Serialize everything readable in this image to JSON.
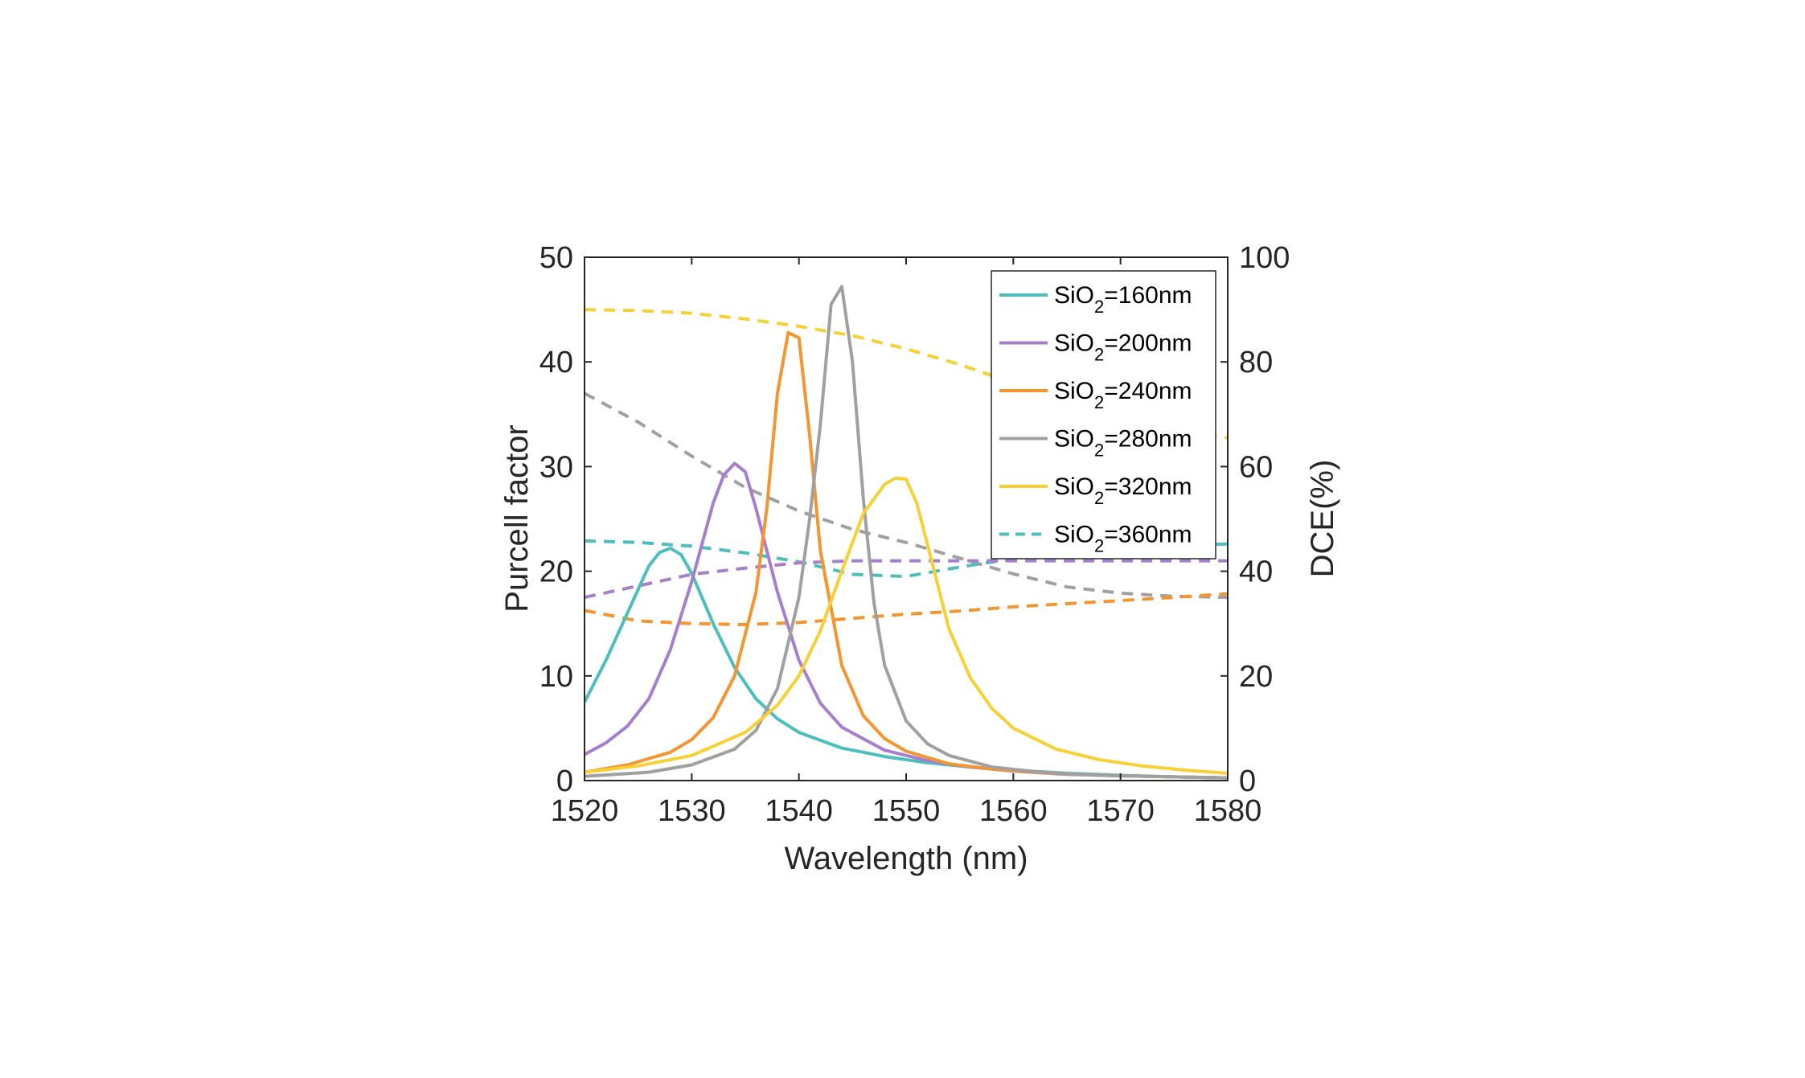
{
  "chart_data": {
    "type": "line",
    "xlabel": "Wavelength (nm)",
    "ylabel_left": "Purcell factor",
    "ylabel_right": "DCE(%)",
    "xlim": [
      1520,
      1580
    ],
    "ylim_left": [
      0,
      50
    ],
    "ylim_right": [
      0,
      100
    ],
    "x_ticks": [
      "1520",
      "1530",
      "1540",
      "1550",
      "1560",
      "1570",
      "1580"
    ],
    "y_left_ticks": [
      "0",
      "10",
      "20",
      "30",
      "40",
      "50"
    ],
    "y_right_ticks": [
      "0",
      "20",
      "40",
      "60",
      "80",
      "100"
    ],
    "grid": false,
    "legend_position": "top-right",
    "legend": [
      {
        "prefix": "SiO",
        "sub": "2",
        "suffix": "=160nm",
        "color": "#4DBEBE",
        "dash": false
      },
      {
        "prefix": "SiO",
        "sub": "2",
        "suffix": "=200nm",
        "color": "#A57FCC",
        "dash": false
      },
      {
        "prefix": "SiO",
        "sub": "2",
        "suffix": "=240nm",
        "color": "#F39530",
        "dash": false
      },
      {
        "prefix": "SiO",
        "sub": "2",
        "suffix": "=280nm",
        "color": "#A0A0A0",
        "dash": false
      },
      {
        "prefix": "SiO",
        "sub": "2",
        "suffix": "=320nm",
        "color": "#F7D035",
        "dash": false
      },
      {
        "prefix": "SiO",
        "sub": "2",
        "suffix": "=360nm",
        "color": "#4DBEBE",
        "dash": true
      }
    ],
    "purcell_series": [
      {
        "color": "#4DBEBE",
        "axis": "left",
        "x": [
          1520,
          1522,
          1524,
          1526,
          1527,
          1528,
          1529,
          1530,
          1532,
          1534,
          1536,
          1538,
          1540,
          1544,
          1548,
          1552,
          1556,
          1560,
          1565,
          1570,
          1575,
          1580
        ],
        "y": [
          7.5,
          11.5,
          16,
          20.5,
          21.8,
          22.2,
          21.6,
          19.8,
          15,
          10.8,
          7.8,
          5.9,
          4.6,
          3.1,
          2.3,
          1.7,
          1.3,
          1.0,
          0.7,
          0.5,
          0.35,
          0.25
        ]
      },
      {
        "color": "#A57FCC",
        "axis": "left",
        "x": [
          1520,
          1522,
          1524,
          1526,
          1528,
          1530,
          1532,
          1533,
          1534,
          1535,
          1536,
          1538,
          1540,
          1542,
          1544,
          1548,
          1552,
          1556,
          1560,
          1565,
          1570,
          1575,
          1580
        ],
        "y": [
          2.5,
          3.6,
          5.2,
          7.8,
          12.5,
          19,
          26.5,
          29.2,
          30.3,
          29.5,
          26,
          18,
          11.5,
          7.4,
          5.1,
          2.9,
          1.9,
          1.3,
          0.9,
          0.6,
          0.45,
          0.35,
          0.25
        ]
      },
      {
        "color": "#F39530",
        "axis": "left",
        "x": [
          1520,
          1524,
          1528,
          1530,
          1532,
          1534,
          1536,
          1537,
          1538,
          1539,
          1540,
          1541,
          1542,
          1544,
          1546,
          1548,
          1550,
          1554,
          1558,
          1562,
          1566,
          1570,
          1575,
          1580
        ],
        "y": [
          0.8,
          1.5,
          2.7,
          3.9,
          6,
          10,
          18,
          26,
          37,
          42.8,
          42.3,
          33,
          22,
          11,
          6.2,
          4,
          2.8,
          1.6,
          1.1,
          0.8,
          0.6,
          0.45,
          0.35,
          0.25
        ]
      },
      {
        "color": "#A0A0A0",
        "axis": "left",
        "x": [
          1520,
          1526,
          1530,
          1534,
          1536,
          1538,
          1540,
          1541,
          1542,
          1543,
          1544,
          1545,
          1546,
          1547,
          1548,
          1550,
          1552,
          1554,
          1558,
          1562,
          1566,
          1570,
          1575,
          1580
        ],
        "y": [
          0.4,
          0.8,
          1.5,
          3,
          4.8,
          8.8,
          17.5,
          25,
          34,
          45.5,
          47.2,
          40,
          27,
          17,
          11,
          5.7,
          3.5,
          2.4,
          1.3,
          0.85,
          0.6,
          0.45,
          0.35,
          0.25
        ]
      },
      {
        "color": "#F7D035",
        "axis": "left",
        "x": [
          1520,
          1525,
          1530,
          1535,
          1538,
          1540,
          1542,
          1544,
          1546,
          1548,
          1549,
          1550,
          1551,
          1552,
          1554,
          1556,
          1558,
          1560,
          1564,
          1568,
          1572,
          1576,
          1580
        ],
        "y": [
          0.8,
          1.4,
          2.4,
          4.6,
          7.2,
          10,
          14.3,
          20,
          25.5,
          28.3,
          28.9,
          28.8,
          26.5,
          22.5,
          14.5,
          9.8,
          6.9,
          5,
          3,
          2,
          1.4,
          1,
          0.7
        ]
      }
    ],
    "dce_series": [
      {
        "color": "#F7D035",
        "axis": "right",
        "x": [
          1520,
          1525,
          1530,
          1535,
          1540,
          1545,
          1550,
          1555,
          1560,
          1565,
          1570,
          1575,
          1580
        ],
        "y": [
          90,
          89.8,
          89.3,
          88.2,
          86.8,
          85,
          82.5,
          79.5,
          76,
          72.5,
          69.5,
          67.3,
          65.5
        ]
      },
      {
        "color": "#A0A0A0",
        "axis": "right",
        "x": [
          1520,
          1525,
          1530,
          1535,
          1540,
          1545,
          1550,
          1555,
          1560,
          1565,
          1570,
          1575,
          1580
        ],
        "y": [
          74,
          68.5,
          62,
          56,
          51.5,
          48,
          45.5,
          42.5,
          39.5,
          37,
          35.8,
          35.2,
          35
        ]
      },
      {
        "color": "#4DBEBE",
        "axis": "right",
        "x": [
          1520,
          1525,
          1530,
          1535,
          1540,
          1545,
          1550,
          1555,
          1560,
          1565,
          1570,
          1575,
          1580
        ],
        "y": [
          45.8,
          45.5,
          44.8,
          43.5,
          41.8,
          39.4,
          39,
          40.8,
          42.4,
          43.8,
          44.5,
          45,
          45.2
        ]
      },
      {
        "color": "#A57FCC",
        "axis": "right",
        "x": [
          1520,
          1525,
          1530,
          1535,
          1540,
          1545,
          1550,
          1555,
          1560,
          1565,
          1570,
          1575,
          1580
        ],
        "y": [
          35,
          37.2,
          39.4,
          40.6,
          41.6,
          42,
          42,
          42,
          42,
          42,
          42,
          42,
          42
        ]
      },
      {
        "color": "#F39530",
        "axis": "right",
        "x": [
          1520,
          1525,
          1530,
          1535,
          1540,
          1545,
          1550,
          1555,
          1560,
          1565,
          1570,
          1575,
          1580
        ],
        "y": [
          32.5,
          30.5,
          30,
          29.8,
          30.2,
          31,
          31.8,
          32.4,
          33.2,
          33.8,
          34.4,
          35,
          35.7
        ]
      }
    ]
  }
}
